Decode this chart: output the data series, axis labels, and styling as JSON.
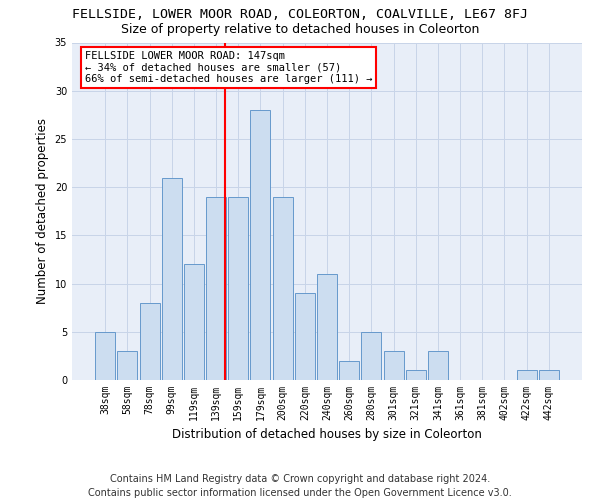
{
  "title": "FELLSIDE, LOWER MOOR ROAD, COLEORTON, COALVILLE, LE67 8FJ",
  "subtitle": "Size of property relative to detached houses in Coleorton",
  "xlabel": "Distribution of detached houses by size in Coleorton",
  "ylabel": "Number of detached properties",
  "bar_labels": [
    "38sqm",
    "58sqm",
    "78sqm",
    "99sqm",
    "119sqm",
    "139sqm",
    "159sqm",
    "179sqm",
    "200sqm",
    "220sqm",
    "240sqm",
    "260sqm",
    "280sqm",
    "301sqm",
    "321sqm",
    "341sqm",
    "361sqm",
    "381sqm",
    "402sqm",
    "422sqm",
    "442sqm"
  ],
  "bar_values": [
    5,
    3,
    8,
    21,
    12,
    19,
    19,
    28,
    19,
    9,
    11,
    2,
    5,
    3,
    1,
    3,
    0,
    0,
    0,
    1,
    1
  ],
  "bar_color": "#ccddf0",
  "bar_edge_color": "#6699cc",
  "vline_color": "red",
  "annotation_text": "FELLSIDE LOWER MOOR ROAD: 147sqm\n← 34% of detached houses are smaller (57)\n66% of semi-detached houses are larger (111) →",
  "annotation_box_color": "white",
  "annotation_box_edge": "red",
  "footer_line1": "Contains HM Land Registry data © Crown copyright and database right 2024.",
  "footer_line2": "Contains public sector information licensed under the Open Government Licence v3.0.",
  "ylim": [
    0,
    35
  ],
  "yticks": [
    0,
    5,
    10,
    15,
    20,
    25,
    30,
    35
  ],
  "bg_color": "#e8eef8",
  "title_fontsize": 9.5,
  "subtitle_fontsize": 9,
  "label_fontsize": 8.5,
  "tick_fontsize": 7,
  "annotation_fontsize": 7.5,
  "footer_fontsize": 7
}
